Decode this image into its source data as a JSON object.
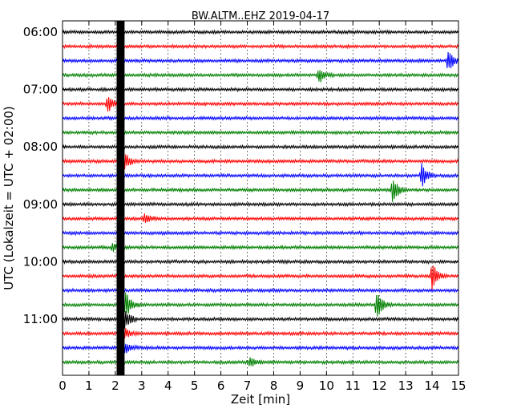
{
  "chart_data": {
    "type": "line",
    "title": "BW.ALTM..EHZ 2019-04-17",
    "xlabel": "Zeit  [min]",
    "ylabel": "UTC (Lokalzeit = UTC + 02:00)",
    "xlim": [
      0,
      15
    ],
    "x_ticks": [
      "0",
      "1",
      "2",
      "3",
      "4",
      "5",
      "6",
      "7",
      "8",
      "9",
      "10",
      "11",
      "12",
      "13",
      "14",
      "15"
    ],
    "y_tick_labels": [
      "06:00",
      "07:00",
      "08:00",
      "09:00",
      "10:00",
      "11:00"
    ],
    "y_tick_trace_index": [
      0,
      4,
      8,
      12,
      16,
      20
    ],
    "grid": "vertical dotted",
    "trace_start": "06:00",
    "trace_interval_min": 15,
    "colors": [
      "#000000",
      "#ff0000",
      "#0000ff",
      "#008000"
    ],
    "events": [
      {
        "trace": 2,
        "t": 14.6,
        "amp": 0.8
      },
      {
        "trace": 3,
        "t": 9.7,
        "amp": 0.6
      },
      {
        "trace": 5,
        "t": 1.7,
        "amp": 0.7
      },
      {
        "trace": 9,
        "t": 2.2,
        "amp": 1.4
      },
      {
        "trace": 10,
        "t": 13.6,
        "amp": 0.9
      },
      {
        "trace": 11,
        "t": 12.5,
        "amp": 1.0
      },
      {
        "trace": 13,
        "t": 3.1,
        "amp": 0.4
      },
      {
        "trace": 15,
        "t": 1.9,
        "amp": 0.3
      },
      {
        "trace": 17,
        "t": 14.0,
        "amp": 1.1
      },
      {
        "trace": 19,
        "t": 2.4,
        "amp": 0.9
      },
      {
        "trace": 19,
        "t": 11.9,
        "amp": 1.0
      },
      {
        "trace": 20,
        "t": 2.2,
        "amp": 2.0
      },
      {
        "trace": 21,
        "t": 2.3,
        "amp": 0.5
      },
      {
        "trace": 22,
        "t": 2.3,
        "amp": 0.6
      },
      {
        "trace": 23,
        "t": 7.1,
        "amp": 0.4
      }
    ],
    "saturated_band": [
      2.05,
      2.35
    ]
  }
}
